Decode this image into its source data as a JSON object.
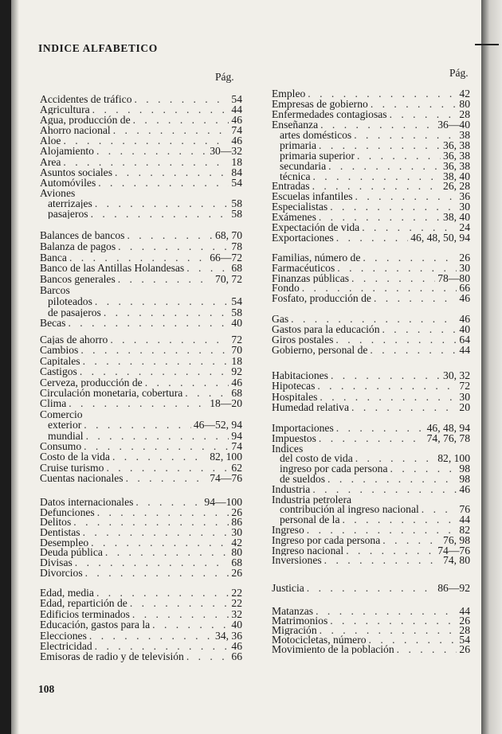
{
  "title": "INDICE ALFABETICO",
  "page_header_label": "Pág.",
  "page_number": "108",
  "left_column": [
    {
      "entries": [
        {
          "term": "Accidentes de tráfico",
          "pages": "54"
        },
        {
          "term": "Agricultura",
          "pages": "44"
        },
        {
          "term": "Agua, producción de",
          "pages": "46"
        },
        {
          "term": "Ahorro nacional",
          "pages": "74"
        },
        {
          "term": "Aloe",
          "pages": "46"
        },
        {
          "term": "Alojamiento",
          "pages": "30—32"
        },
        {
          "term": "Area",
          "pages": "18"
        },
        {
          "term": "Asuntos sociales",
          "pages": "84"
        },
        {
          "term": "Automóviles",
          "pages": "54"
        },
        {
          "term": "Aviones",
          "pages": ""
        },
        {
          "term": "aterrizajes",
          "pages": "58",
          "indent": true
        },
        {
          "term": "pasajeros",
          "pages": "58",
          "indent": true
        }
      ]
    },
    {
      "entries": [
        {
          "term": "Balances de bancos",
          "pages": "68, 70"
        },
        {
          "term": "Balanza de pagos",
          "pages": "78"
        },
        {
          "term": "Banca",
          "pages": "66—72"
        },
        {
          "term": "Banco de las Antillas Holandesas",
          "pages": "68"
        },
        {
          "term": "Bancos generales",
          "pages": "70, 72"
        },
        {
          "term": "Barcos",
          "pages": ""
        },
        {
          "term": "piloteados",
          "pages": "54",
          "indent": true
        },
        {
          "term": "de pasajeros",
          "pages": "58",
          "indent": true
        },
        {
          "term": "Becas",
          "pages": "40"
        }
      ]
    },
    {
      "entries": [
        {
          "term": "Cajas de ahorro",
          "pages": "72"
        },
        {
          "term": "Cambios",
          "pages": "70"
        },
        {
          "term": "Capitales",
          "pages": "18"
        },
        {
          "term": "Castigos",
          "pages": "92"
        },
        {
          "term": "Cerveza, producción de",
          "pages": "46"
        },
        {
          "term": "Circulación monetaria, cobertura",
          "pages": "68"
        },
        {
          "term": "Clima",
          "pages": "18—20"
        },
        {
          "term": "Comercio",
          "pages": ""
        },
        {
          "term": "exterior",
          "pages": "46—52, 94",
          "indent": true
        },
        {
          "term": "mundial",
          "pages": "94",
          "indent": true
        },
        {
          "term": "Consumo",
          "pages": "74"
        },
        {
          "term": "Costo de la vida",
          "pages": "82, 100"
        },
        {
          "term": "Cruise turismo",
          "pages": "62"
        },
        {
          "term": "Cuentas nacionales",
          "pages": "74—76"
        }
      ]
    },
    {
      "entries": [
        {
          "term": "Datos internacionales",
          "pages": "94—100"
        },
        {
          "term": "Defunciones",
          "pages": "26"
        },
        {
          "term": "Delitos",
          "pages": "86"
        },
        {
          "term": "Dentistas",
          "pages": "30"
        },
        {
          "term": "Desempleo",
          "pages": "42"
        },
        {
          "term": "Deuda pública",
          "pages": "80"
        },
        {
          "term": "Divisas",
          "pages": "68"
        },
        {
          "term": "Divorcios",
          "pages": "26"
        }
      ]
    },
    {
      "entries": [
        {
          "term": "Edad, media",
          "pages": "22"
        },
        {
          "term": "Edad, repartición de",
          "pages": "22"
        },
        {
          "term": "Edificios terminados",
          "pages": "32"
        },
        {
          "term": "Educación, gastos para la",
          "pages": "40"
        },
        {
          "term": "Elecciones",
          "pages": "34, 36"
        },
        {
          "term": "Electricidad",
          "pages": "46"
        },
        {
          "term": "Emisoras de radio y de televisión",
          "pages": "66"
        }
      ]
    }
  ],
  "right_column": [
    {
      "entries": [
        {
          "term": "Empleo",
          "pages": "42"
        },
        {
          "term": "Empresas de gobierno",
          "pages": "80"
        },
        {
          "term": "Enfermedades contagiosas",
          "pages": "28"
        },
        {
          "term": "Enseñanza",
          "pages": "36—40"
        },
        {
          "term": "artes domésticos",
          "pages": "38",
          "indent": true
        },
        {
          "term": "primaria",
          "pages": "36, 38",
          "indent": true
        },
        {
          "term": "primaria superior",
          "pages": "36, 38",
          "indent": true
        },
        {
          "term": "secundaria",
          "pages": "36, 38",
          "indent": true
        },
        {
          "term": "técnica",
          "pages": "38, 40",
          "indent": true
        },
        {
          "term": "Entradas",
          "pages": "26, 28"
        },
        {
          "term": "Escuelas infantiles",
          "pages": "36"
        },
        {
          "term": "Especialistas",
          "pages": "30"
        },
        {
          "term": "Exámenes",
          "pages": "38, 40"
        },
        {
          "term": "Expectación de vida",
          "pages": "24"
        },
        {
          "term": "Exportaciones",
          "pages": "46, 48, 50, 94"
        }
      ]
    },
    {
      "entries": [
        {
          "term": "Familias, número de",
          "pages": "26"
        },
        {
          "term": "Farmacéuticos",
          "pages": "30"
        },
        {
          "term": "Finanzas públicas",
          "pages": "78—80"
        },
        {
          "term": "Fondo",
          "pages": "66"
        },
        {
          "term": "Fosfato, producción de",
          "pages": "46"
        }
      ]
    },
    {
      "entries": [
        {
          "term": "Gas",
          "pages": "46"
        },
        {
          "term": "Gastos para la educación",
          "pages": "40"
        },
        {
          "term": "Giros postales",
          "pages": "64"
        },
        {
          "term": "Gobierno, personal de",
          "pages": "44"
        }
      ]
    },
    {
      "entries": [
        {
          "term": "Habitaciones",
          "pages": "30, 32"
        },
        {
          "term": "Hipotecas",
          "pages": "72"
        },
        {
          "term": "Hospitales",
          "pages": "30"
        },
        {
          "term": "Humedad relativa",
          "pages": "20"
        }
      ]
    },
    {
      "entries": [
        {
          "term": "Importaciones",
          "pages": "46, 48, 94"
        },
        {
          "term": "Impuestos",
          "pages": "74, 76, 78"
        },
        {
          "term": "Indices",
          "pages": ""
        },
        {
          "term": "del costo de vida",
          "pages": "82, 100",
          "indent": true
        },
        {
          "term": "ingreso por cada persona",
          "pages": "98",
          "indent": true
        },
        {
          "term": "de sueldos",
          "pages": "98",
          "indent": true
        },
        {
          "term": "Industria",
          "pages": "46"
        },
        {
          "term": "Industria petrolera",
          "pages": ""
        },
        {
          "term": "contribución al ingreso nacional",
          "pages": "76",
          "indent": true
        },
        {
          "term": "personal de la",
          "pages": "44",
          "indent": true
        },
        {
          "term": "Ingreso",
          "pages": "82"
        },
        {
          "term": "Ingreso por cada persona",
          "pages": "76, 98"
        },
        {
          "term": "Ingreso nacional",
          "pages": "74—76"
        },
        {
          "term": "Inversiones",
          "pages": "74, 80"
        }
      ]
    },
    {
      "entries": [
        {
          "term": "Justicia",
          "pages": "86—92"
        }
      ]
    },
    {
      "entries": [
        {
          "term": "Matanzas",
          "pages": "44"
        },
        {
          "term": "Matrimonios",
          "pages": "26"
        },
        {
          "term": "Migración",
          "pages": "28"
        },
        {
          "term": "Motocicletas, número",
          "pages": "54"
        },
        {
          "term": "Movimiento de la población",
          "pages": "26"
        }
      ]
    }
  ]
}
